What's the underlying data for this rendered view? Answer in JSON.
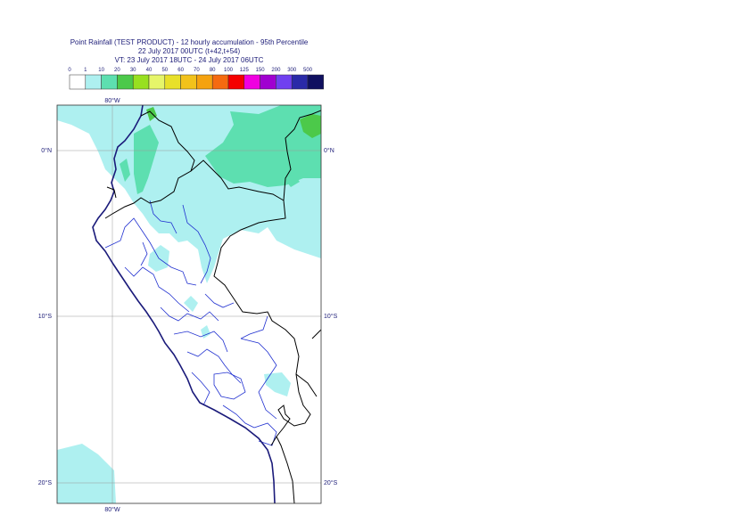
{
  "title": {
    "line1": "Point Rainfall (TEST PRODUCT) - 12 hourly accumulation - 95th Percentile",
    "line2": "22 July 2017 00UTC (t+42,t+54)",
    "line3": "VT: 23 July 2017 18UTC - 24 July 2017 06UTC"
  },
  "legend": {
    "thresholds": [
      "0",
      "1",
      "10",
      "20",
      "30",
      "40",
      "50",
      "60",
      "70",
      "80",
      "100",
      "125",
      "150",
      "200",
      "300",
      "500"
    ],
    "colors": [
      "#ffffff",
      "#aef0f0",
      "#5ddfb0",
      "#4cc94a",
      "#98e020",
      "#e6f56a",
      "#e8e02a",
      "#f2c21b",
      "#f5a20f",
      "#f56a10",
      "#f50000",
      "#f000e0",
      "#a000d0",
      "#7040f0",
      "#2a2aa8",
      "#101060"
    ]
  },
  "axes": {
    "lon_top": "80°W",
    "lon_bottom": "80°W",
    "lat_labels": [
      "0°N",
      "10°S",
      "20°S"
    ],
    "lat_labels_right": [
      "0°N",
      "10°S",
      "20°S"
    ]
  },
  "colors": {
    "light_rain": "#aef0f0",
    "moderate_rain": "#5ddfb0",
    "heavy_rain": "#4cc94a",
    "coast": "#1a1a7a",
    "border": "#000000",
    "admin": "#2030d0",
    "grid": "#999999"
  }
}
